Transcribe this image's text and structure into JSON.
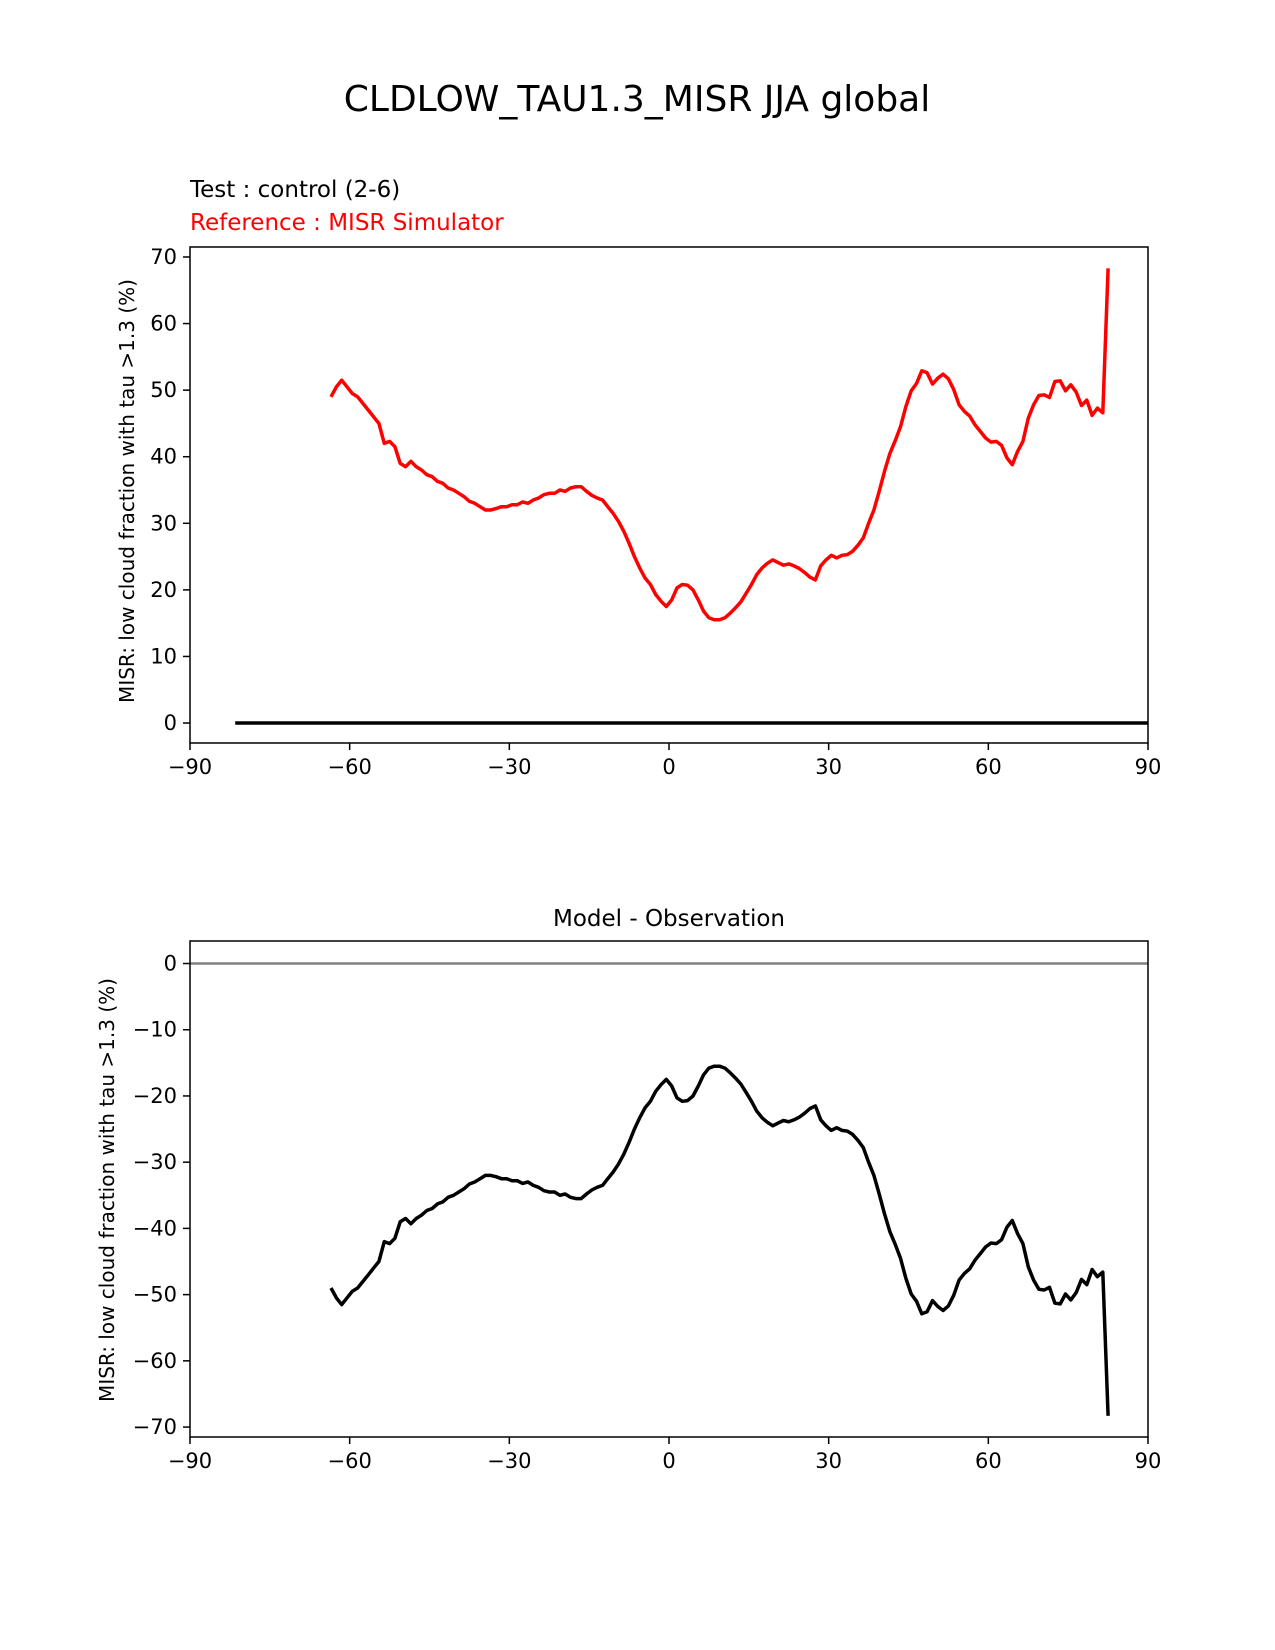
{
  "figure_title": "CLDLOW_TAU1.3_MISR JJA global",
  "top_panel": {
    "test_label": "Test : control (2-6)",
    "reference_label": "Reference : MISR Simulator"
  },
  "bottom_panel": {
    "title": "Model - Observation"
  },
  "colors": {
    "test": "#000000",
    "reference": "#ff0000",
    "difference": "#000000",
    "zero_line": "#808080",
    "axes": "#000000"
  },
  "chart_data": [
    {
      "type": "line",
      "xlabel": "",
      "ylabel": "MISR: low cloud fraction with tau >1.3 (%)",
      "xlim": [
        -90,
        90
      ],
      "ylim": [
        -3,
        71.5
      ],
      "xticks": [
        -90,
        -60,
        -30,
        0,
        30,
        60,
        90
      ],
      "xtick_labels": [
        "−90",
        "−60",
        "−30",
        "0",
        "30",
        "60",
        "90"
      ],
      "yticks": [
        0,
        10,
        20,
        30,
        40,
        50,
        60,
        70
      ],
      "ytick_labels": [
        "0",
        "10",
        "20",
        "30",
        "40",
        "50",
        "60",
        "70"
      ],
      "series": [
        {
          "name": "Test : control (2-6)",
          "color": "#000000",
          "x": [
            -81.5,
            90
          ],
          "y": [
            0,
            0
          ]
        },
        {
          "name": "Reference : MISR Simulator",
          "color": "#ff0000",
          "x": [
            -63.5,
            -62.5,
            -61.5,
            -60.5,
            -59.5,
            -58.5,
            -57.5,
            -56.5,
            -55.5,
            -54.5,
            -53.5,
            -52.5,
            -51.5,
            -50.5,
            -49.5,
            -48.5,
            -47.5,
            -46.5,
            -45.5,
            -44.5,
            -43.5,
            -42.5,
            -41.5,
            -40.5,
            -39.5,
            -38.5,
            -37.5,
            -36.5,
            -35.5,
            -34.5,
            -33.5,
            -32.5,
            -31.5,
            -30.5,
            -29.5,
            -28.5,
            -27.5,
            -26.5,
            -25.5,
            -24.5,
            -23.5,
            -22.5,
            -21.5,
            -20.5,
            -19.5,
            -18.5,
            -17.5,
            -16.5,
            -15.5,
            -14.5,
            -13.5,
            -12.5,
            -11.5,
            -10.5,
            -9.5,
            -8.5,
            -7.5,
            -6.5,
            -5.5,
            -4.5,
            -3.5,
            -2.5,
            -1.5,
            -0.5,
            0.5,
            1.5,
            2.5,
            3.5,
            4.5,
            5.5,
            6.5,
            7.5,
            8.5,
            9.5,
            10.5,
            11.5,
            12.5,
            13.5,
            14.5,
            15.5,
            16.5,
            17.5,
            18.5,
            19.5,
            20.5,
            21.5,
            22.5,
            23.5,
            24.5,
            25.5,
            26.5,
            27.5,
            28.5,
            29.5,
            30.5,
            31.5,
            32.5,
            33.5,
            34.5,
            35.5,
            36.5,
            37.5,
            38.5,
            39.5,
            40.5,
            41.5,
            42.5,
            43.5,
            44.5,
            45.5,
            46.5,
            47.5,
            48.5,
            49.5,
            50.5,
            51.5,
            52.5,
            53.5,
            54.5,
            55.5,
            56.5,
            57.5,
            58.5,
            59.5,
            60.5,
            61.5,
            62.5,
            63.5,
            64.5,
            65.5,
            66.5,
            67.5,
            68.5,
            69.5,
            70.5,
            71.5,
            72.5,
            73.5,
            74.5,
            75.5,
            76.5,
            77.5,
            78.5,
            79.5,
            80.5,
            81.5,
            82.5
          ],
          "y": [
            49.0,
            50.5,
            51.5,
            50.5,
            49.5,
            49.0,
            48.0,
            47.0,
            46.0,
            45.0,
            42.0,
            42.3,
            41.5,
            39.0,
            38.5,
            39.3,
            38.5,
            38.0,
            37.3,
            37.0,
            36.3,
            36.0,
            35.3,
            35.0,
            34.5,
            34.0,
            33.3,
            33.0,
            32.5,
            32.0,
            32.0,
            32.2,
            32.5,
            32.5,
            32.8,
            32.8,
            33.2,
            33.0,
            33.5,
            33.8,
            34.3,
            34.5,
            34.5,
            35.0,
            34.8,
            35.3,
            35.5,
            35.5,
            34.8,
            34.2,
            33.8,
            33.5,
            32.5,
            31.5,
            30.3,
            28.8,
            27.0,
            25.0,
            23.3,
            21.8,
            20.8,
            19.3,
            18.3,
            17.5,
            18.5,
            20.3,
            20.8,
            20.7,
            20.0,
            18.5,
            16.8,
            15.8,
            15.5,
            15.5,
            15.8,
            16.5,
            17.3,
            18.2,
            19.5,
            20.8,
            22.3,
            23.3,
            24.0,
            24.5,
            24.1,
            23.7,
            23.9,
            23.6,
            23.2,
            22.6,
            21.9,
            21.5,
            23.6,
            24.5,
            25.2,
            24.8,
            25.2,
            25.3,
            25.8,
            26.7,
            27.8,
            30.0,
            32.0,
            34.8,
            37.8,
            40.5,
            42.4,
            44.5,
            47.5,
            49.9,
            51.0,
            52.9,
            52.6,
            50.9,
            51.8,
            52.4,
            51.7,
            50.1,
            47.8,
            46.8,
            46.1,
            44.8,
            43.8,
            42.8,
            42.2,
            42.3,
            41.7,
            39.8,
            38.8,
            40.8,
            42.3,
            45.8,
            47.8,
            49.2,
            49.3,
            48.9,
            51.3,
            51.4,
            49.9,
            50.8,
            49.7,
            47.7,
            48.5,
            46.2,
            47.3,
            46.6,
            68.3
          ]
        }
      ]
    },
    {
      "type": "line",
      "title": "Model - Observation",
      "xlabel": "",
      "ylabel": "MISR: low cloud fraction with tau >1.3 (%)",
      "xlim": [
        -90,
        90
      ],
      "ylim": [
        -71.5,
        3.4
      ],
      "xticks": [
        -90,
        -60,
        -30,
        0,
        30,
        60,
        90
      ],
      "xtick_labels": [
        "−90",
        "−60",
        "−30",
        "0",
        "30",
        "60",
        "90"
      ],
      "yticks": [
        0,
        -10,
        -20,
        -30,
        -40,
        -50,
        -60,
        -70
      ],
      "ytick_labels": [
        "0",
        "−10",
        "−20",
        "−30",
        "−40",
        "−50",
        "−60",
        "−70"
      ],
      "zero_line": 0,
      "series": [
        {
          "name": "Model - Observation",
          "color": "#000000",
          "x": [
            -63.5,
            -62.5,
            -61.5,
            -60.5,
            -59.5,
            -58.5,
            -57.5,
            -56.5,
            -55.5,
            -54.5,
            -53.5,
            -52.5,
            -51.5,
            -50.5,
            -49.5,
            -48.5,
            -47.5,
            -46.5,
            -45.5,
            -44.5,
            -43.5,
            -42.5,
            -41.5,
            -40.5,
            -39.5,
            -38.5,
            -37.5,
            -36.5,
            -35.5,
            -34.5,
            -33.5,
            -32.5,
            -31.5,
            -30.5,
            -29.5,
            -28.5,
            -27.5,
            -26.5,
            -25.5,
            -24.5,
            -23.5,
            -22.5,
            -21.5,
            -20.5,
            -19.5,
            -18.5,
            -17.5,
            -16.5,
            -15.5,
            -14.5,
            -13.5,
            -12.5,
            -11.5,
            -10.5,
            -9.5,
            -8.5,
            -7.5,
            -6.5,
            -5.5,
            -4.5,
            -3.5,
            -2.5,
            -1.5,
            -0.5,
            0.5,
            1.5,
            2.5,
            3.5,
            4.5,
            5.5,
            6.5,
            7.5,
            8.5,
            9.5,
            10.5,
            11.5,
            12.5,
            13.5,
            14.5,
            15.5,
            16.5,
            17.5,
            18.5,
            19.5,
            20.5,
            21.5,
            22.5,
            23.5,
            24.5,
            25.5,
            26.5,
            27.5,
            28.5,
            29.5,
            30.5,
            31.5,
            32.5,
            33.5,
            34.5,
            35.5,
            36.5,
            37.5,
            38.5,
            39.5,
            40.5,
            41.5,
            42.5,
            43.5,
            44.5,
            45.5,
            46.5,
            47.5,
            48.5,
            49.5,
            50.5,
            51.5,
            52.5,
            53.5,
            54.5,
            55.5,
            56.5,
            57.5,
            58.5,
            59.5,
            60.5,
            61.5,
            62.5,
            63.5,
            64.5,
            65.5,
            66.5,
            67.5,
            68.5,
            69.5,
            70.5,
            71.5,
            72.5,
            73.5,
            74.5,
            75.5,
            76.5,
            77.5,
            78.5,
            79.5,
            80.5,
            81.5,
            82.5
          ],
          "y": [
            -49.0,
            -50.5,
            -51.5,
            -50.5,
            -49.5,
            -49.0,
            -48.0,
            -47.0,
            -46.0,
            -45.0,
            -42.0,
            -42.3,
            -41.5,
            -39.0,
            -38.5,
            -39.3,
            -38.5,
            -38.0,
            -37.3,
            -37.0,
            -36.3,
            -36.0,
            -35.3,
            -35.0,
            -34.5,
            -34.0,
            -33.3,
            -33.0,
            -32.5,
            -32.0,
            -32.0,
            -32.2,
            -32.5,
            -32.5,
            -32.8,
            -32.8,
            -33.2,
            -33.0,
            -33.5,
            -33.8,
            -34.3,
            -34.5,
            -34.5,
            -35.0,
            -34.8,
            -35.3,
            -35.5,
            -35.5,
            -34.8,
            -34.2,
            -33.8,
            -33.5,
            -32.5,
            -31.5,
            -30.3,
            -28.8,
            -27.0,
            -25.0,
            -23.3,
            -21.8,
            -20.8,
            -19.3,
            -18.3,
            -17.5,
            -18.5,
            -20.3,
            -20.8,
            -20.7,
            -20.0,
            -18.5,
            -16.8,
            -15.8,
            -15.5,
            -15.5,
            -15.8,
            -16.5,
            -17.3,
            -18.2,
            -19.5,
            -20.8,
            -22.3,
            -23.3,
            -24.0,
            -24.5,
            -24.1,
            -23.7,
            -23.9,
            -23.6,
            -23.2,
            -22.6,
            -21.9,
            -21.5,
            -23.6,
            -24.5,
            -25.2,
            -24.8,
            -25.2,
            -25.3,
            -25.8,
            -26.7,
            -27.8,
            -30.0,
            -32.0,
            -34.8,
            -37.8,
            -40.5,
            -42.4,
            -44.5,
            -47.5,
            -49.9,
            -51.0,
            -52.9,
            -52.6,
            -50.9,
            -51.8,
            -52.4,
            -51.7,
            -50.1,
            -47.8,
            -46.8,
            -46.1,
            -44.8,
            -43.8,
            -42.8,
            -42.2,
            -42.3,
            -41.7,
            -39.8,
            -38.8,
            -40.8,
            -42.3,
            -45.8,
            -47.8,
            -49.2,
            -49.3,
            -48.9,
            -51.3,
            -51.4,
            -49.9,
            -50.8,
            -49.7,
            -47.7,
            -48.5,
            -46.2,
            -47.3,
            -46.6,
            -68.3
          ]
        }
      ]
    }
  ]
}
